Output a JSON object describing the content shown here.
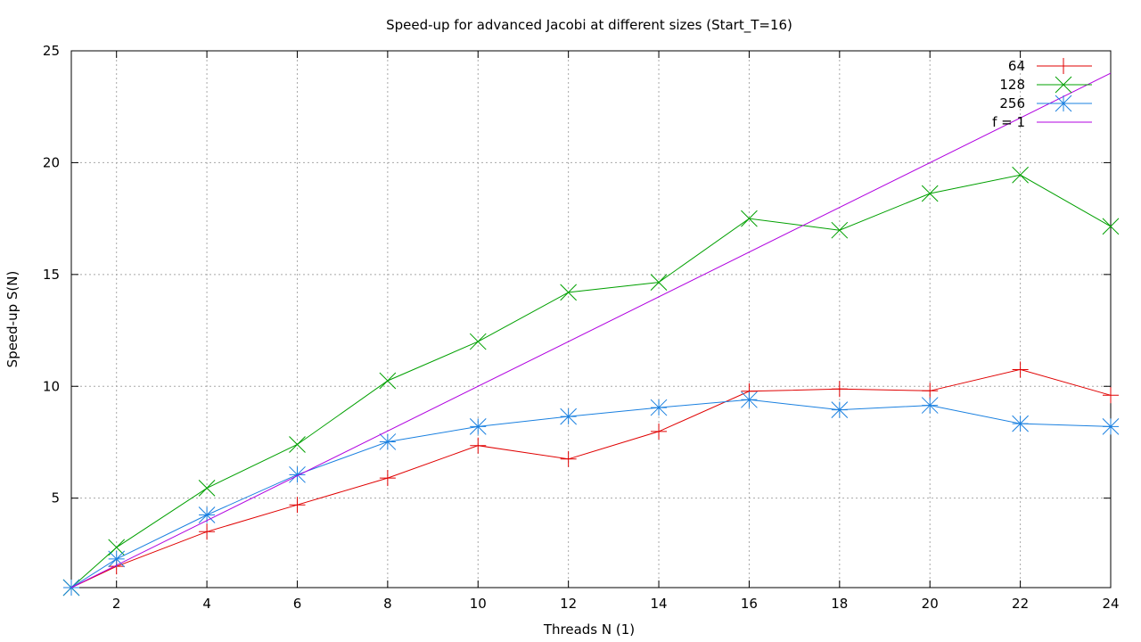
{
  "chart_data": {
    "type": "line",
    "title": "Speed-up for advanced Jacobi at different sizes (Start_T=16)",
    "xlabel": "Threads N (1)",
    "ylabel": "Speed-up S(N)",
    "xlim": [
      1,
      24
    ],
    "ylim": [
      1,
      25
    ],
    "xticks": [
      2,
      4,
      6,
      8,
      10,
      12,
      14,
      16,
      18,
      20,
      22,
      24
    ],
    "yticks": [
      5,
      10,
      15,
      20,
      25
    ],
    "grid": true,
    "legend_position": "top-right",
    "x": [
      1,
      2,
      4,
      6,
      8,
      10,
      12,
      14,
      16,
      18,
      20,
      22,
      24
    ],
    "series": [
      {
        "name": "64",
        "color": "#e00000",
        "marker": "plus",
        "values": [
          1.0,
          1.95,
          3.5,
          4.7,
          5.9,
          7.35,
          6.75,
          7.98,
          9.78,
          9.88,
          9.8,
          10.75,
          9.6
        ]
      },
      {
        "name": "128",
        "color": "#00a000",
        "marker": "cross",
        "values": [
          1.0,
          2.8,
          5.45,
          7.4,
          10.25,
          12.0,
          14.2,
          14.65,
          17.5,
          16.98,
          18.62,
          19.45,
          17.15
        ]
      },
      {
        "name": "256",
        "color": "#1a80e0",
        "marker": "star",
        "values": [
          1.0,
          2.28,
          4.25,
          6.05,
          7.52,
          8.2,
          8.65,
          9.05,
          9.4,
          8.95,
          9.15,
          8.33,
          8.2
        ]
      },
      {
        "name": "f = 1",
        "color": "#b000e0",
        "marker": "none",
        "x": [
          1,
          24
        ],
        "values": [
          1,
          24
        ]
      }
    ]
  }
}
